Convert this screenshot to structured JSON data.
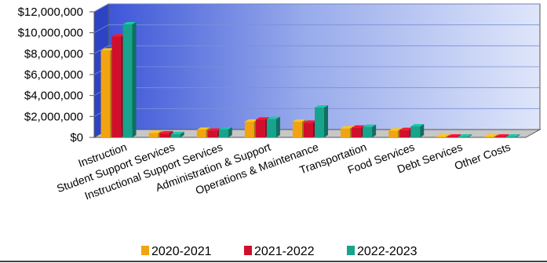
{
  "chart_data": {
    "type": "bar",
    "title": "",
    "xlabel": "",
    "ylabel": "",
    "ylim": [
      0,
      12000000
    ],
    "y_ticks": [
      "$0",
      "$2,000,000",
      "$4,000,000",
      "$6,000,000",
      "$8,000,000",
      "$10,000,000",
      "$12,000,000"
    ],
    "categories": [
      "Instruction",
      "Student Support Services",
      "Instructional Support Services",
      "Administration & Support",
      "Operations & Maintenance",
      "Transportation",
      "Food Services",
      "Debt Services",
      "Other Costs"
    ],
    "series": [
      {
        "name": "2020-2021",
        "color": "#f2a311",
        "values": [
          8300000,
          420000,
          720000,
          1500000,
          1500000,
          850000,
          650000,
          60000,
          40000
        ]
      },
      {
        "name": "2021-2022",
        "color": "#d00f2d",
        "values": [
          9650000,
          380000,
          640000,
          1700000,
          1400000,
          930000,
          700000,
          50000,
          30000
        ]
      },
      {
        "name": "2022-2023",
        "color": "#17a38c",
        "values": [
          10800000,
          320000,
          760000,
          1750000,
          2850000,
          1000000,
          1050000,
          40000,
          30000
        ]
      }
    ],
    "grid": true,
    "legend_position": "bottom"
  }
}
